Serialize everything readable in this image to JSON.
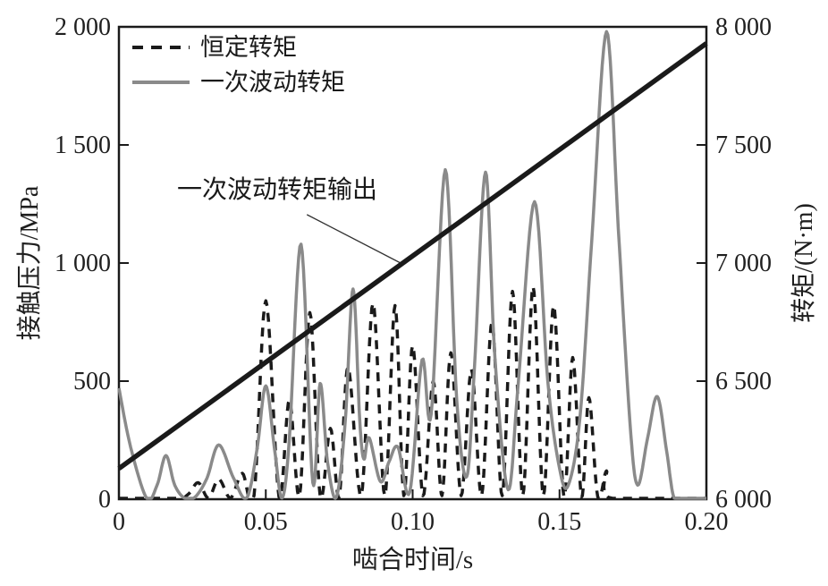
{
  "figure": {
    "background": "#ffffff",
    "axis_color": "#1a1a1a",
    "gray_series_color": "#8a8a8a"
  },
  "chart_data": {
    "type": "line",
    "title": "",
    "xlabel": "啮合时间/s",
    "ylabel_left": "接触压力/MPa",
    "ylabel_right": "转矩/(N·m)",
    "grid": false,
    "legend_position": "top-left-inside",
    "x_axis": {
      "label": "啮合时间/s",
      "range": [
        0,
        0.2
      ],
      "tick_values": [
        0,
        0.05,
        0.1,
        0.15,
        0.2
      ],
      "tick_labels": [
        "0",
        "0.05",
        "0.10",
        "0.15",
        "0.20"
      ]
    },
    "y_left": {
      "label": "接触压力/MPa",
      "range": [
        0,
        2000
      ],
      "tick_values": [
        0,
        500,
        1000,
        1500,
        2000
      ],
      "tick_labels": [
        "0",
        "500",
        "1 000",
        "1 500",
        "2 000"
      ]
    },
    "y_right": {
      "label": "转矩/(N·m)",
      "range": [
        6000,
        8000
      ],
      "tick_values": [
        6000,
        6500,
        7000,
        7500,
        8000
      ],
      "tick_labels": [
        "6 000",
        "6 500",
        "7 000",
        "7 500",
        "8 000"
      ]
    },
    "legend": [
      {
        "label": "恒定转矩",
        "style": "dashed",
        "color": "#1a1a1a"
      },
      {
        "label": "一次波动转矩",
        "style": "solid",
        "color": "#8a8a8a"
      }
    ],
    "annotation": {
      "text": "一次波动转矩输出",
      "leader_from": [
        0.064,
        1205
      ],
      "leader_to": [
        0.0959,
        1000
      ]
    },
    "series": [
      {
        "name": "恒定转矩",
        "axis": "left",
        "style": "dashed",
        "color": "#1a1a1a",
        "width": 3.5,
        "smooth": true,
        "points": [
          [
            0.0,
            0
          ],
          [
            0.019,
            0
          ],
          [
            0.0235,
            20
          ],
          [
            0.027,
            70
          ],
          [
            0.0305,
            5
          ],
          [
            0.034,
            85
          ],
          [
            0.038,
            5
          ],
          [
            0.042,
            110
          ],
          [
            0.046,
            15
          ],
          [
            0.05,
            840
          ],
          [
            0.0545,
            10
          ],
          [
            0.058,
            420
          ],
          [
            0.0615,
            15
          ],
          [
            0.065,
            790
          ],
          [
            0.0685,
            15
          ],
          [
            0.072,
            300
          ],
          [
            0.075,
            10
          ],
          [
            0.078,
            560
          ],
          [
            0.0825,
            15
          ],
          [
            0.0865,
            830
          ],
          [
            0.0905,
            15
          ],
          [
            0.094,
            820
          ],
          [
            0.097,
            15
          ],
          [
            0.1,
            650
          ],
          [
            0.1035,
            15
          ],
          [
            0.107,
            500
          ],
          [
            0.11,
            15
          ],
          [
            0.113,
            620
          ],
          [
            0.1165,
            15
          ],
          [
            0.12,
            550
          ],
          [
            0.1235,
            15
          ],
          [
            0.127,
            750
          ],
          [
            0.1305,
            15
          ],
          [
            0.134,
            880
          ],
          [
            0.1375,
            15
          ],
          [
            0.141,
            900
          ],
          [
            0.1445,
            15
          ],
          [
            0.148,
            820
          ],
          [
            0.1515,
            10
          ],
          [
            0.1545,
            600
          ],
          [
            0.1575,
            10
          ],
          [
            0.16,
            430
          ],
          [
            0.163,
            10
          ],
          [
            0.166,
            120
          ],
          [
            0.168,
            0
          ],
          [
            0.2,
            0
          ]
        ]
      },
      {
        "name": "一次波动转矩",
        "axis": "left",
        "style": "solid",
        "color": "#8a8a8a",
        "width": 3.5,
        "smooth": true,
        "points": [
          [
            0.0,
            470
          ],
          [
            0.004,
            220
          ],
          [
            0.0095,
            3
          ],
          [
            0.013,
            60
          ],
          [
            0.016,
            185
          ],
          [
            0.019,
            60
          ],
          [
            0.0225,
            3
          ],
          [
            0.026,
            10
          ],
          [
            0.03,
            90
          ],
          [
            0.034,
            230
          ],
          [
            0.039,
            90
          ],
          [
            0.0435,
            5
          ],
          [
            0.047,
            210
          ],
          [
            0.05,
            480
          ],
          [
            0.053,
            210
          ],
          [
            0.0555,
            5
          ],
          [
            0.058,
            250
          ],
          [
            0.062,
            1080
          ],
          [
            0.066,
            70
          ],
          [
            0.0685,
            490
          ],
          [
            0.071,
            160
          ],
          [
            0.074,
            8
          ],
          [
            0.077,
            320
          ],
          [
            0.0797,
            890
          ],
          [
            0.082,
            330
          ],
          [
            0.0834,
            170
          ],
          [
            0.0852,
            260
          ],
          [
            0.089,
            75
          ],
          [
            0.092,
            160
          ],
          [
            0.095,
            220
          ],
          [
            0.099,
            30
          ],
          [
            0.1032,
            590
          ],
          [
            0.1063,
            360
          ],
          [
            0.1111,
            1395
          ],
          [
            0.115,
            420
          ],
          [
            0.1184,
            95
          ],
          [
            0.121,
            550
          ],
          [
            0.1248,
            1385
          ],
          [
            0.128,
            600
          ],
          [
            0.1325,
            40
          ],
          [
            0.136,
            500
          ],
          [
            0.1415,
            1260
          ],
          [
            0.146,
            500
          ],
          [
            0.15,
            130
          ],
          [
            0.153,
            60
          ],
          [
            0.157,
            350
          ],
          [
            0.161,
            1100
          ],
          [
            0.166,
            1980
          ],
          [
            0.17,
            1150
          ],
          [
            0.174,
            320
          ],
          [
            0.1766,
            60
          ],
          [
            0.18,
            260
          ],
          [
            0.1833,
            435
          ],
          [
            0.1865,
            200
          ],
          [
            0.189,
            5
          ],
          [
            0.1925,
            0
          ],
          [
            0.2,
            0
          ]
        ]
      },
      {
        "name": "一次波动转矩输出",
        "axis": "right",
        "style": "solid",
        "color": "#1a1a1a",
        "width": 5.5,
        "smooth": false,
        "points": [
          [
            0.0,
            6130
          ],
          [
            0.2,
            7930
          ]
        ]
      }
    ]
  }
}
